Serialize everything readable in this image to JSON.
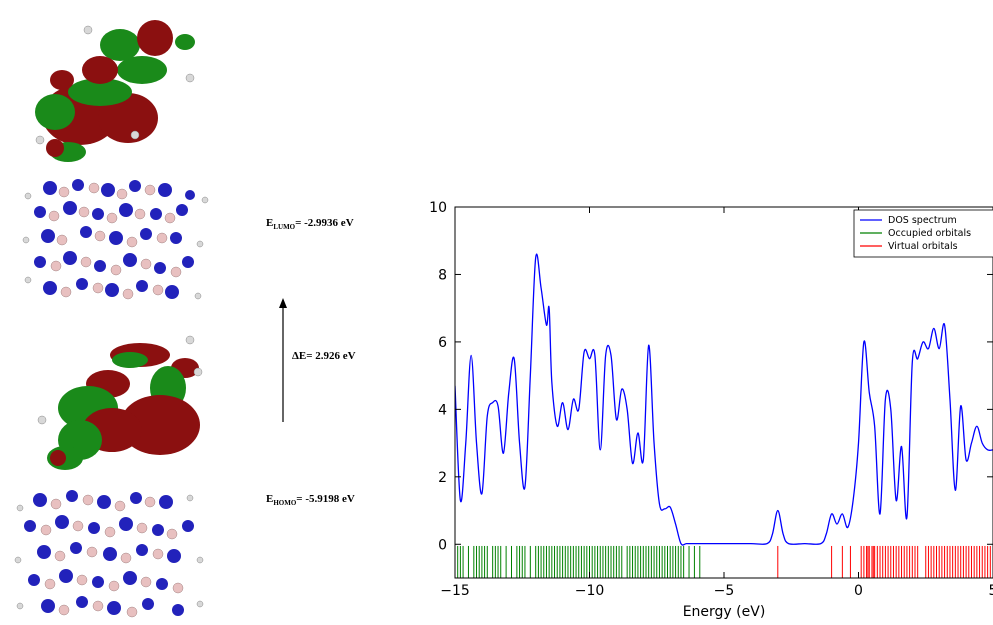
{
  "molecular_panel": {
    "lumo_label": {
      "symbol": "E",
      "subscript": "LUMO",
      "value": "= -2.9936 eV"
    },
    "gap_label": "ΔE= 2.926 eV",
    "homo_label": {
      "symbol": "E",
      "subscript": "HOMO",
      "value": "= -5.9198 eV"
    }
  },
  "colors": {
    "dos_line": "#0000ff",
    "occupied": "#008000",
    "virtual": "#ff0000",
    "lobe_red": "#8b1010",
    "lobe_green": "#1a8a1a",
    "atom_n": "#2222bb",
    "atom_b": "#e8c0c0",
    "atom_h": "#d8d8d8"
  },
  "chart_data": {
    "type": "line",
    "xlabel": "Energy (eV)",
    "ylabel": "",
    "xlim": [
      -15,
      5
    ],
    "ylim": [
      -1,
      10
    ],
    "xticks": [
      -15,
      -10,
      -5,
      0,
      5
    ],
    "xtick_labels": [
      "−15",
      "−10",
      "−5",
      "0",
      "5"
    ],
    "yticks": [
      0,
      2,
      4,
      6,
      8,
      10
    ],
    "ytick_labels": [
      "0",
      "2",
      "4",
      "6",
      "8",
      "10"
    ],
    "legend_position": "top-right",
    "series": [
      {
        "name": "DOS spectrum",
        "x": [
          -15.0,
          -14.8,
          -14.6,
          -14.4,
          -14.2,
          -14.0,
          -13.8,
          -13.6,
          -13.4,
          -13.2,
          -13.0,
          -12.8,
          -12.6,
          -12.4,
          -12.2,
          -12.0,
          -11.8,
          -11.6,
          -11.5,
          -11.4,
          -11.2,
          -11.0,
          -10.8,
          -10.6,
          -10.4,
          -10.2,
          -10.0,
          -9.8,
          -9.6,
          -9.4,
          -9.2,
          -9.0,
          -8.8,
          -8.6,
          -8.4,
          -8.2,
          -8.0,
          -7.8,
          -7.6,
          -7.4,
          -7.2,
          -7.0,
          -6.8,
          -6.6,
          -6.4,
          -6.2,
          -6.0,
          -5.8,
          -5.6,
          -5.4,
          -5.0,
          -4.0,
          -3.4,
          -3.2,
          -3.0,
          -2.8,
          -2.6,
          -2.0,
          -1.4,
          -1.2,
          -1.0,
          -0.8,
          -0.6,
          -0.4,
          -0.2,
          0.0,
          0.2,
          0.4,
          0.6,
          0.8,
          1.0,
          1.2,
          1.4,
          1.6,
          1.8,
          2.0,
          2.2,
          2.4,
          2.6,
          2.8,
          3.0,
          3.2,
          3.4,
          3.6,
          3.8,
          4.0,
          4.2,
          4.4,
          4.6,
          4.8,
          5.0
        ],
        "y": [
          4.7,
          1.3,
          3.0,
          5.6,
          3.0,
          1.5,
          3.8,
          4.2,
          4.1,
          2.7,
          4.5,
          5.5,
          3.0,
          1.7,
          5.0,
          8.5,
          7.6,
          6.5,
          7.0,
          4.8,
          3.5,
          4.2,
          3.4,
          4.3,
          4.0,
          5.7,
          5.5,
          5.6,
          2.8,
          5.6,
          5.6,
          3.7,
          4.6,
          4.0,
          2.4,
          3.3,
          2.5,
          5.9,
          3.0,
          1.2,
          1.05,
          1.1,
          0.6,
          0.02,
          0.02,
          0.02,
          0.02,
          0.02,
          0.02,
          0.02,
          0.02,
          0.02,
          0.02,
          0.3,
          1.0,
          0.3,
          0.02,
          0.02,
          0.02,
          0.3,
          0.9,
          0.6,
          0.9,
          0.5,
          1.3,
          3.0,
          6.0,
          4.5,
          3.5,
          0.9,
          4.3,
          4.0,
          1.3,
          2.9,
          0.8,
          5.4,
          5.5,
          6.0,
          5.8,
          6.4,
          5.8,
          6.5,
          4.3,
          1.6,
          4.1,
          2.5,
          3.0,
          3.5,
          3.0,
          2.8,
          2.8
        ]
      }
    ],
    "occupied_orbitals": {
      "name": "Occupied orbitals",
      "energies": [
        -14.9,
        -14.8,
        -14.7,
        -14.5,
        -14.3,
        -14.2,
        -14.1,
        -14.0,
        -13.9,
        -13.8,
        -13.6,
        -13.5,
        -13.4,
        -13.3,
        -13.1,
        -12.9,
        -12.7,
        -12.6,
        -12.5,
        -12.4,
        -12.2,
        -12.0,
        -11.9,
        -11.8,
        -11.7,
        -11.6,
        -11.5,
        -11.4,
        -11.3,
        -11.2,
        -11.1,
        -11.0,
        -10.9,
        -10.8,
        -10.7,
        -10.6,
        -10.5,
        -10.4,
        -10.3,
        -10.2,
        -10.1,
        -10.0,
        -9.9,
        -9.8,
        -9.7,
        -9.6,
        -9.5,
        -9.4,
        -9.3,
        -9.2,
        -9.1,
        -9.0,
        -8.9,
        -8.8,
        -8.6,
        -8.5,
        -8.4,
        -8.3,
        -8.2,
        -8.1,
        -8.0,
        -7.9,
        -7.8,
        -7.7,
        -7.6,
        -7.5,
        -7.4,
        -7.3,
        -7.2,
        -7.1,
        -7.0,
        -6.9,
        -6.8,
        -6.7,
        -6.6,
        -6.5,
        -6.3,
        -6.1,
        -5.9
      ]
    },
    "virtual_orbitals": {
      "name": "Virtual orbitals",
      "energies": [
        -3.0,
        -1.0,
        -0.6,
        -0.3,
        0.1,
        0.2,
        0.3,
        0.35,
        0.4,
        0.5,
        0.55,
        0.6,
        0.7,
        0.8,
        0.9,
        1.0,
        1.1,
        1.2,
        1.3,
        1.4,
        1.5,
        1.6,
        1.7,
        1.8,
        1.9,
        2.0,
        2.1,
        2.2,
        2.5,
        2.6,
        2.7,
        2.8,
        2.9,
        3.0,
        3.1,
        3.2,
        3.3,
        3.4,
        3.5,
        3.6,
        3.7,
        3.8,
        3.9,
        4.0,
        4.1,
        4.2,
        4.3,
        4.4,
        4.5,
        4.6,
        4.7,
        4.8,
        4.9
      ]
    }
  }
}
